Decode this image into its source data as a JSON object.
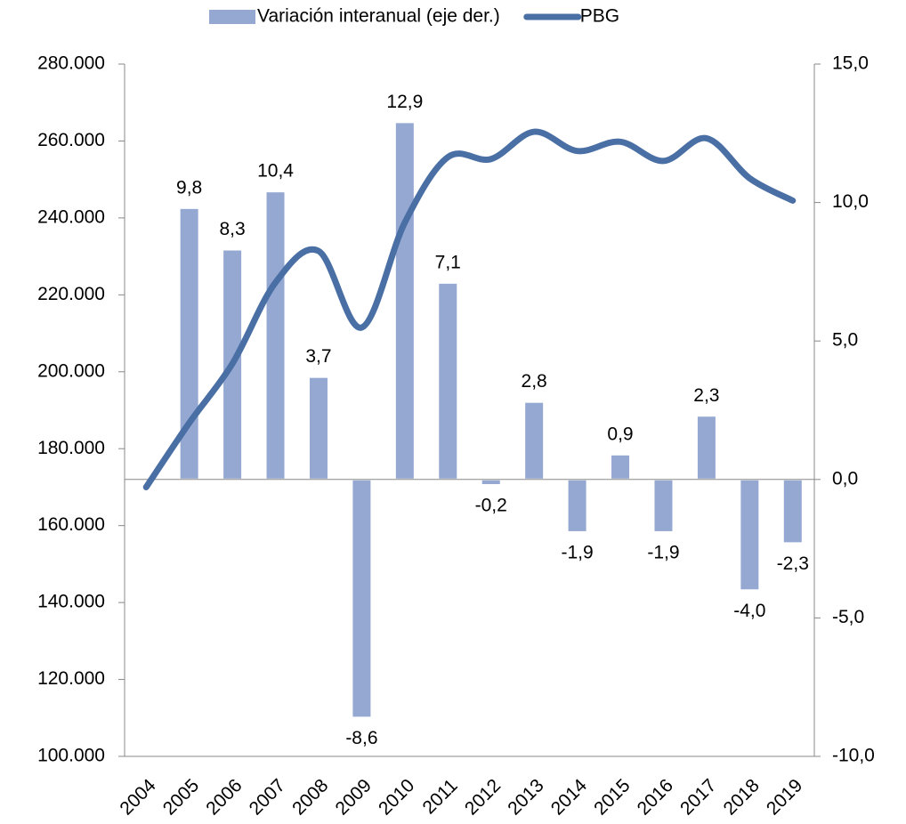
{
  "chart_data": {
    "type": "bar_line",
    "categories": [
      "2004",
      "2005",
      "2006",
      "2007",
      "2008",
      "2009",
      "2010",
      "2011",
      "2012",
      "2013",
      "2014",
      "2015",
      "2016",
      "2017",
      "2018",
      "2019"
    ],
    "series": [
      {
        "name": "Variación interanual (eje der.)",
        "type": "bar",
        "axis": "y2",
        "color": "#95a8d2",
        "values": [
          null,
          9.8,
          8.3,
          10.4,
          3.7,
          -8.6,
          12.9,
          7.1,
          -0.2,
          2.8,
          -1.9,
          0.9,
          -1.9,
          2.3,
          -4.0,
          -2.3
        ],
        "value_labels": [
          null,
          "9,8",
          "8,3",
          "10,4",
          "3,7",
          "-8,6",
          "12,9",
          "7,1",
          "-0,2",
          "2,8",
          "-1,9",
          "0,9",
          "-1,9",
          "2,3",
          "-4,0",
          "-2,3"
        ]
      },
      {
        "name": "PBG",
        "type": "line",
        "axis": "y",
        "color": "#4a6fa5",
        "values": [
          170000,
          186700,
          202100,
          223200,
          231400,
          211500,
          238800,
          255800,
          255300,
          262400,
          257400,
          259800,
          254800,
          260700,
          250300,
          244500
        ]
      }
    ],
    "ylim": [
      100000,
      280000
    ],
    "yticks": [
      {
        "value": 100000,
        "label": "100.000"
      },
      {
        "value": 120000,
        "label": "120.000"
      },
      {
        "value": 140000,
        "label": "140.000"
      },
      {
        "value": 160000,
        "label": "160.000"
      },
      {
        "value": 180000,
        "label": "180.000"
      },
      {
        "value": 200000,
        "label": "200.000"
      },
      {
        "value": 220000,
        "label": "220.000"
      },
      {
        "value": 240000,
        "label": "240.000"
      },
      {
        "value": 260000,
        "label": "260.000"
      },
      {
        "value": 280000,
        "label": "280.000"
      }
    ],
    "y2lim": [
      -10,
      15
    ],
    "y2ticks": [
      {
        "value": -10,
        "label": "-10,0"
      },
      {
        "value": -5,
        "label": "-5,0"
      },
      {
        "value": 0,
        "label": "0,0"
      },
      {
        "value": 5,
        "label": "5,0"
      },
      {
        "value": 10,
        "label": "10,0"
      },
      {
        "value": 15,
        "label": "15,0"
      }
    ],
    "legend": "top"
  }
}
